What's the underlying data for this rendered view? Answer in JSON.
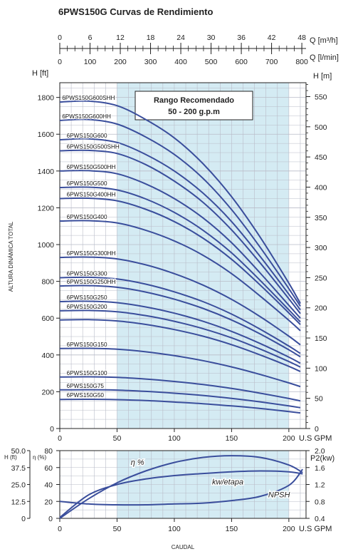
{
  "title": "6PWS150G Curvas de Rendimiento",
  "colors": {
    "curve": "#3a4e9c",
    "band": "#d4ebf3",
    "grid": "#b9bcc8",
    "axis": "#222222"
  },
  "chart_data": [
    {
      "type": "line",
      "name": "head-curves",
      "top_axis_q_m3h": {
        "label": "Q [m³/h]",
        "ticks": [
          0,
          6,
          12,
          18,
          24,
          30,
          36,
          42,
          48
        ]
      },
      "top_axis_q_lmin": {
        "label": "Q [l/min]",
        "ticks": [
          0,
          100,
          200,
          300,
          400,
          500,
          600,
          700,
          800
        ]
      },
      "xlabel": "U.S GPM",
      "xlim": [
        0,
        215
      ],
      "xticks": [
        0,
        50,
        100,
        150,
        200
      ],
      "ylabel_left": "H [ft]",
      "ylabel_left_side": "ALTURA DINÁMICA TOTAL",
      "ylim_ft": [
        0,
        1880
      ],
      "yticks_ft": [
        0,
        200,
        400,
        600,
        800,
        1000,
        1200,
        1400,
        1600,
        1800
      ],
      "ylabel_right": "H [m]",
      "yticks_m": [
        0,
        50,
        100,
        150,
        200,
        250,
        300,
        350,
        400,
        450,
        500,
        550
      ],
      "recommended_range": {
        "x": [
          50,
          200
        ],
        "label_line1": "Rango Recomendado",
        "label_line2": "50 - 200 g.p.m"
      },
      "series": [
        {
          "name": "6PWS150G600SHH",
          "x": [
            0,
            25,
            50,
            75,
            100,
            125,
            150,
            175,
            200,
            210
          ],
          "y": [
            1775,
            1780,
            1755,
            1680,
            1580,
            1440,
            1260,
            1040,
            790,
            680
          ]
        },
        {
          "name": "6PWS150G600HH",
          "x": [
            0,
            25,
            50,
            75,
            100,
            125,
            150,
            175,
            200,
            210
          ],
          "y": [
            1675,
            1680,
            1655,
            1585,
            1490,
            1360,
            1190,
            985,
            760,
            665
          ]
        },
        {
          "name": "6PWS150G600",
          "x": [
            0,
            25,
            50,
            75,
            100,
            125,
            150,
            175,
            200,
            210
          ],
          "y": [
            1570,
            1575,
            1555,
            1490,
            1400,
            1280,
            1125,
            935,
            730,
            645
          ]
        },
        {
          "name": "6PWS150G500SHH",
          "x": [
            0,
            25,
            50,
            75,
            100,
            125,
            150,
            175,
            200,
            210
          ],
          "y": [
            1510,
            1512,
            1495,
            1435,
            1345,
            1230,
            1080,
            900,
            705,
            625
          ]
        },
        {
          "name": "6PWS150G500HH",
          "x": [
            0,
            25,
            50,
            75,
            100,
            125,
            150,
            175,
            200,
            210
          ],
          "y": [
            1400,
            1402,
            1385,
            1330,
            1250,
            1145,
            1010,
            845,
            670,
            600
          ]
        },
        {
          "name": "6PWS150G500",
          "x": [
            0,
            25,
            50,
            75,
            100,
            125,
            150,
            175,
            200,
            210
          ],
          "y": [
            1310,
            1312,
            1297,
            1248,
            1175,
            1078,
            955,
            805,
            645,
            580
          ]
        },
        {
          "name": "6PWS150G400HH",
          "x": [
            0,
            25,
            50,
            75,
            100,
            125,
            150,
            175,
            200,
            210
          ],
          "y": [
            1250,
            1252,
            1238,
            1192,
            1125,
            1035,
            920,
            780,
            628,
            565
          ]
        },
        {
          "name": "6PWS150G400",
          "x": [
            0,
            25,
            50,
            75,
            100,
            125,
            150,
            175,
            200,
            210
          ],
          "y": [
            1128,
            1130,
            1118,
            1078,
            1020,
            942,
            842,
            720,
            588,
            532
          ]
        },
        {
          "name": "6PWS150G300HH",
          "x": [
            0,
            25,
            50,
            75,
            100,
            125,
            150,
            175,
            200,
            210
          ],
          "y": [
            930,
            932,
            922,
            890,
            842,
            780,
            702,
            608,
            502,
            455
          ]
        },
        {
          "name": "6PWS150G300",
          "x": [
            0,
            25,
            50,
            75,
            100,
            125,
            150,
            175,
            200,
            210
          ],
          "y": [
            820,
            822,
            813,
            785,
            743,
            690,
            622,
            540,
            448,
            408
          ]
        },
        {
          "name": "6PWS150G250HH",
          "x": [
            0,
            25,
            50,
            75,
            100,
            125,
            150,
            175,
            200,
            210
          ],
          "y": [
            775,
            777,
            768,
            742,
            703,
            653,
            590,
            514,
            428,
            390
          ]
        },
        {
          "name": "6PWS150G250",
          "x": [
            0,
            25,
            50,
            75,
            100,
            125,
            150,
            175,
            200,
            210
          ],
          "y": [
            690,
            692,
            684,
            661,
            627,
            583,
            528,
            462,
            388,
            355
          ]
        },
        {
          "name": "6PWS150G200",
          "x": [
            0,
            25,
            50,
            75,
            100,
            125,
            150,
            175,
            200,
            210
          ],
          "y": [
            640,
            642,
            635,
            614,
            583,
            543,
            493,
            432,
            364,
            334
          ]
        },
        {
          "name": "6PWS150G200b",
          "x": [
            0,
            25,
            50,
            75,
            100,
            125,
            150,
            175,
            200,
            210
          ],
          "y": [
            590,
            592,
            585,
            566,
            538,
            502,
            456,
            400,
            338,
            310
          ]
        },
        {
          "name": "6PWS150G150",
          "x": [
            0,
            25,
            50,
            75,
            100,
            125,
            150,
            175,
            200,
            210
          ],
          "y": [
            435,
            436,
            431,
            417,
            396,
            369,
            335,
            294,
            248,
            228
          ]
        },
        {
          "name": "6PWS150G100",
          "x": [
            0,
            25,
            50,
            75,
            100,
            125,
            150,
            175,
            200,
            210
          ],
          "y": [
            280,
            281,
            278,
            269,
            256,
            239,
            218,
            192,
            163,
            150
          ]
        },
        {
          "name": "6PWS150G75",
          "x": [
            0,
            25,
            50,
            75,
            100,
            125,
            150,
            175,
            200,
            210
          ],
          "y": [
            210,
            211,
            209,
            202,
            192,
            180,
            164,
            145,
            123,
            113
          ]
        },
        {
          "name": "6PWS150G50",
          "x": [
            0,
            25,
            50,
            75,
            100,
            125,
            150,
            175,
            200,
            210
          ],
          "y": [
            158,
            159,
            157,
            152,
            144,
            135,
            123,
            109,
            92,
            85
          ]
        }
      ],
      "labels": [
        {
          "text": "6PWS150G600SHH",
          "series": "6PWS150G600SHH",
          "side": "left"
        },
        {
          "text": "6PWS150G600HH",
          "series": "6PWS150G600HH",
          "side": "left"
        },
        {
          "text": "6PWS150G600",
          "series": "6PWS150G600",
          "side": "mid"
        },
        {
          "text": "6PWS150G500SHH",
          "series": "6PWS150G500SHH",
          "side": "mid"
        },
        {
          "text": "6PWS150G500HH",
          "series": "6PWS150G500HH",
          "side": "mid"
        },
        {
          "text": "6PWS150G500",
          "series": "6PWS150G500",
          "side": "mid"
        },
        {
          "text": "6PWS150G400HH",
          "series": "6PWS150G400HH",
          "side": "mid"
        },
        {
          "text": "6PWS150G400",
          "series": "6PWS150G400",
          "side": "mid"
        },
        {
          "text": "6PWS150G300HH",
          "series": "6PWS150G300HH",
          "side": "mid"
        },
        {
          "text": "6PWS150G300",
          "series": "6PWS150G300",
          "side": "mid"
        },
        {
          "text": "6PWS150G250HH",
          "series": "6PWS150G250HH",
          "side": "mid"
        },
        {
          "text": "6PWS150G250",
          "series": "6PWS150G250",
          "side": "mid"
        },
        {
          "text": "6PWS150G200",
          "series": "6PWS150G200",
          "side": "mid"
        },
        {
          "text": "6PWS150G150",
          "series": "6PWS150G150",
          "side": "mid"
        },
        {
          "text": "6PWS150G100",
          "series": "6PWS150G100",
          "side": "mid"
        },
        {
          "text": "6PWS150G75",
          "series": "6PWS150G75",
          "side": "mid"
        },
        {
          "text": "6PWS150G50",
          "series": "6PWS150G50",
          "side": "mid"
        }
      ]
    },
    {
      "type": "line",
      "name": "efficiency-power-npsh",
      "xlabel": "U.S GPM",
      "xlabel_bottom": "CAUDAL",
      "xlim": [
        0,
        215
      ],
      "xticks": [
        0,
        50,
        100,
        150,
        200
      ],
      "left_axis_h": {
        "label": "H (ft)",
        "ticks": [
          "50.0",
          "37.5",
          "25.0",
          "12.5",
          "0"
        ]
      },
      "left_axis_eta": {
        "label": "η (%)",
        "ticks": [
          80,
          60,
          40,
          20,
          0
        ],
        "ylim": [
          0,
          80
        ]
      },
      "right_axis_p2": {
        "label": "P2(kw)",
        "ticks": [
          "2.0",
          "1.6",
          "1.2",
          "0.8",
          "0.4"
        ],
        "ylim": [
          0.4,
          2.0
        ]
      },
      "right_axis_top_label": "kw",
      "series": [
        {
          "name": "η %",
          "axis": "eta",
          "x": [
            0,
            25,
            50,
            75,
            100,
            125,
            150,
            175,
            200,
            212
          ],
          "y": [
            0,
            23,
            42,
            56,
            66,
            72,
            74,
            72,
            63,
            54
          ]
        },
        {
          "name": "kw/etapa",
          "axis": "p2",
          "x": [
            0,
            25,
            50,
            75,
            100,
            125,
            150,
            175,
            200,
            212
          ],
          "y": [
            0.42,
            0.95,
            1.2,
            1.33,
            1.41,
            1.46,
            1.5,
            1.52,
            1.5,
            1.45
          ]
        },
        {
          "name": "NPSH",
          "axis": "eta",
          "x": [
            0,
            25,
            50,
            75,
            100,
            125,
            150,
            175,
            200,
            212
          ],
          "y": [
            20,
            17,
            16,
            16,
            17,
            18,
            21,
            26,
            39,
            58
          ]
        }
      ],
      "annotations": [
        {
          "text": "η %",
          "series": "η %"
        },
        {
          "text": "kw/etapa",
          "series": "kw/etapa"
        },
        {
          "text": "NPSH",
          "series": "NPSH"
        }
      ]
    }
  ]
}
